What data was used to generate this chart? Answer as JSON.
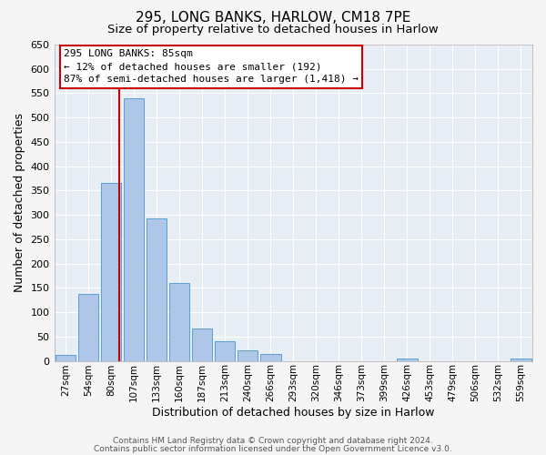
{
  "title": "295, LONG BANKS, HARLOW, CM18 7PE",
  "subtitle": "Size of property relative to detached houses in Harlow",
  "xlabel": "Distribution of detached houses by size in Harlow",
  "ylabel": "Number of detached properties",
  "bar_categories": [
    "27sqm",
    "54sqm",
    "80sqm",
    "107sqm",
    "133sqm",
    "160sqm",
    "187sqm",
    "213sqm",
    "240sqm",
    "266sqm",
    "293sqm",
    "320sqm",
    "346sqm",
    "373sqm",
    "399sqm",
    "426sqm",
    "453sqm",
    "479sqm",
    "506sqm",
    "532sqm",
    "559sqm"
  ],
  "bar_values": [
    12,
    138,
    365,
    540,
    293,
    160,
    67,
    40,
    22,
    14,
    0,
    0,
    0,
    0,
    0,
    4,
    0,
    0,
    0,
    0,
    4
  ],
  "bar_color": "#aec6e8",
  "bar_edge_color": "#5a9fd4",
  "background_color": "#e8eef5",
  "grid_color": "#ffffff",
  "vline_x": 2.35,
  "vline_color": "#cc0000",
  "annotation_box_text": "295 LONG BANKS: 85sqm\n← 12% of detached houses are smaller (192)\n87% of semi-detached houses are larger (1,418) →",
  "ylim": [
    0,
    650
  ],
  "yticks": [
    0,
    50,
    100,
    150,
    200,
    250,
    300,
    350,
    400,
    450,
    500,
    550,
    600,
    650
  ],
  "footer_line1": "Contains HM Land Registry data © Crown copyright and database right 2024.",
  "footer_line2": "Contains public sector information licensed under the Open Government Licence v3.0."
}
